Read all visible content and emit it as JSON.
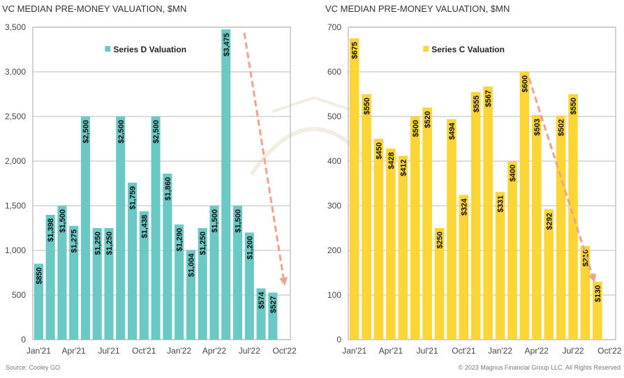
{
  "footer": {
    "source": "Source: Cooley GO",
    "copyright": "© 2023 Magnus Financial Group LLC. All Rights Reserved"
  },
  "watermark": "MAGNUS FINANCIAL GROUP",
  "chart_data": [
    {
      "type": "bar",
      "title": "VC MEDIAN PRE-MONEY VALUATION, $MN",
      "legend": {
        "label": "Series D Valuation",
        "placement": "top-center"
      },
      "color": "#6BC9C5",
      "categories": [
        "Jan'21",
        "Feb'21",
        "Mar'21",
        "Apr'21",
        "May'21",
        "Jun'21",
        "Jul'21",
        "Aug'21",
        "Sep'21",
        "Oct'21",
        "Nov'21",
        "Dec'21",
        "Jan'22",
        "Feb'22",
        "Mar'22",
        "Apr'22",
        "May'22",
        "Jun'22",
        "Jul'22",
        "Aug'22",
        "Sep'22"
      ],
      "x_tick_labels": [
        "Jan'21",
        "Apr'21",
        "Jul'21",
        "Oct'21",
        "Jan'22",
        "Apr'22",
        "Jul'22",
        "Oct'22"
      ],
      "values": [
        850,
        1398,
        1500,
        1275,
        2500,
        1250,
        1250,
        2500,
        1759,
        1438,
        2500,
        1860,
        1290,
        1004,
        1250,
        1500,
        3475,
        1500,
        1200,
        574,
        527
      ],
      "data_labels": [
        "$850",
        "$1,398",
        "$1,500",
        "$1,275",
        "$2,500",
        "$1,250",
        "$1,250",
        "$2,500",
        "$1,759",
        "$1,438",
        "$2,500",
        "$1,860",
        "$1,290",
        "$1,004",
        "$1,250",
        "$1,500",
        "$3,475",
        "$1,500",
        "$1,200",
        "$574",
        "$527"
      ],
      "ylim": [
        0,
        3500
      ],
      "y_ticks": [
        "0",
        "500",
        "1,000",
        "1,500",
        "2,000",
        "2,500",
        "3,000",
        "3,500"
      ],
      "grid": true,
      "annotation": "dashed downward trend arrow"
    },
    {
      "type": "bar",
      "title": "VC MEDIAN PRE-MONEY VALUATION, $MN",
      "legend": {
        "label": "Series C Valuation",
        "placement": "top-center"
      },
      "color": "#FDD535",
      "categories": [
        "Jan'21",
        "Feb'21",
        "Mar'21",
        "Apr'21",
        "May'21",
        "Jun'21",
        "Jul'21",
        "Aug'21",
        "Sep'21",
        "Oct'21",
        "Nov'21",
        "Dec'21",
        "Jan'22",
        "Feb'22",
        "Mar'22",
        "Apr'22",
        "May'22",
        "Jun'22",
        "Jul'22",
        "Aug'22",
        "Sep'22"
      ],
      "x_tick_labels": [
        "Jan'21",
        "Apr'21",
        "Jul'21",
        "Oct'21",
        "Jan'22",
        "Apr'22",
        "Jul'22",
        "Oct'22"
      ],
      "values": [
        675,
        550,
        450,
        428,
        412,
        500,
        520,
        250,
        494,
        324,
        555,
        567,
        331,
        400,
        600,
        503,
        292,
        502,
        550,
        210,
        130
      ],
      "data_labels": [
        "$675",
        "$550",
        "$450",
        "$428",
        "$412",
        "$500",
        "$520",
        "$250",
        "$494",
        "$324",
        "$555",
        "$567",
        "$331",
        "$400",
        "$600",
        "$503",
        "$292",
        "$502",
        "$550",
        "$210",
        "$130"
      ],
      "ylim": [
        0,
        700
      ],
      "y_ticks": [
        "0",
        "100",
        "200",
        "300",
        "400",
        "500",
        "600",
        "700"
      ],
      "grid": true,
      "annotation": "dashed downward trend arrow"
    }
  ],
  "arrow_color": "#F4A08C"
}
